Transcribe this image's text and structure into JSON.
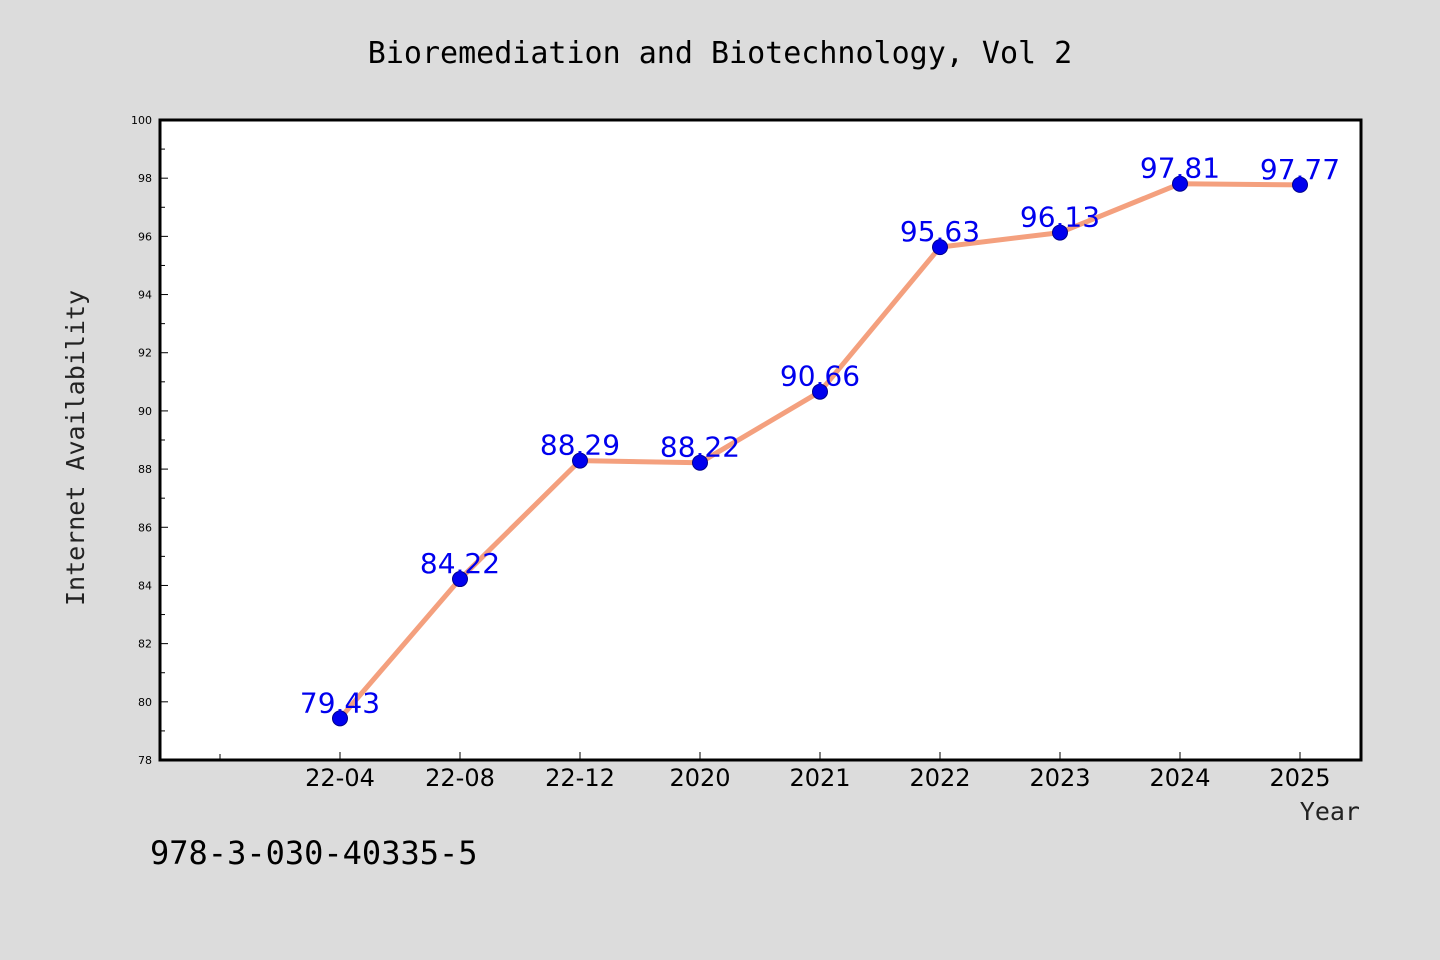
{
  "chart_data": {
    "type": "line",
    "title": "Bioremediation and Biotechnology, Vol 2",
    "xlabel": "Year",
    "ylabel": "Internet Availability",
    "categories": [
      "22-04",
      "22-08",
      "22-12",
      "2020",
      "2021",
      "2022",
      "2023",
      "2024",
      "2025"
    ],
    "series": [
      {
        "values": [
          79.43,
          84.22,
          88.29,
          88.22,
          90.66,
          95.63,
          96.13,
          97.81,
          97.77
        ]
      }
    ],
    "data_labels": [
      "79.43",
      "84.22",
      "88.29",
      "88.22",
      "90.66",
      "95.63",
      "96.13",
      "97.81",
      "97.77"
    ],
    "ylim": [
      78,
      100
    ],
    "yticks": [
      78,
      80,
      82,
      84,
      86,
      88,
      90,
      92,
      94,
      96,
      98,
      100
    ],
    "grid": false,
    "legend": "none",
    "line_color": "#f4a07e",
    "marker_color": "#0000ee",
    "label_color": "#0000ee"
  },
  "footer": {
    "isbn": "978-3-030-40335-5"
  },
  "colors": {
    "background": "#dcdcdc",
    "plot_area": "#ffffff"
  }
}
